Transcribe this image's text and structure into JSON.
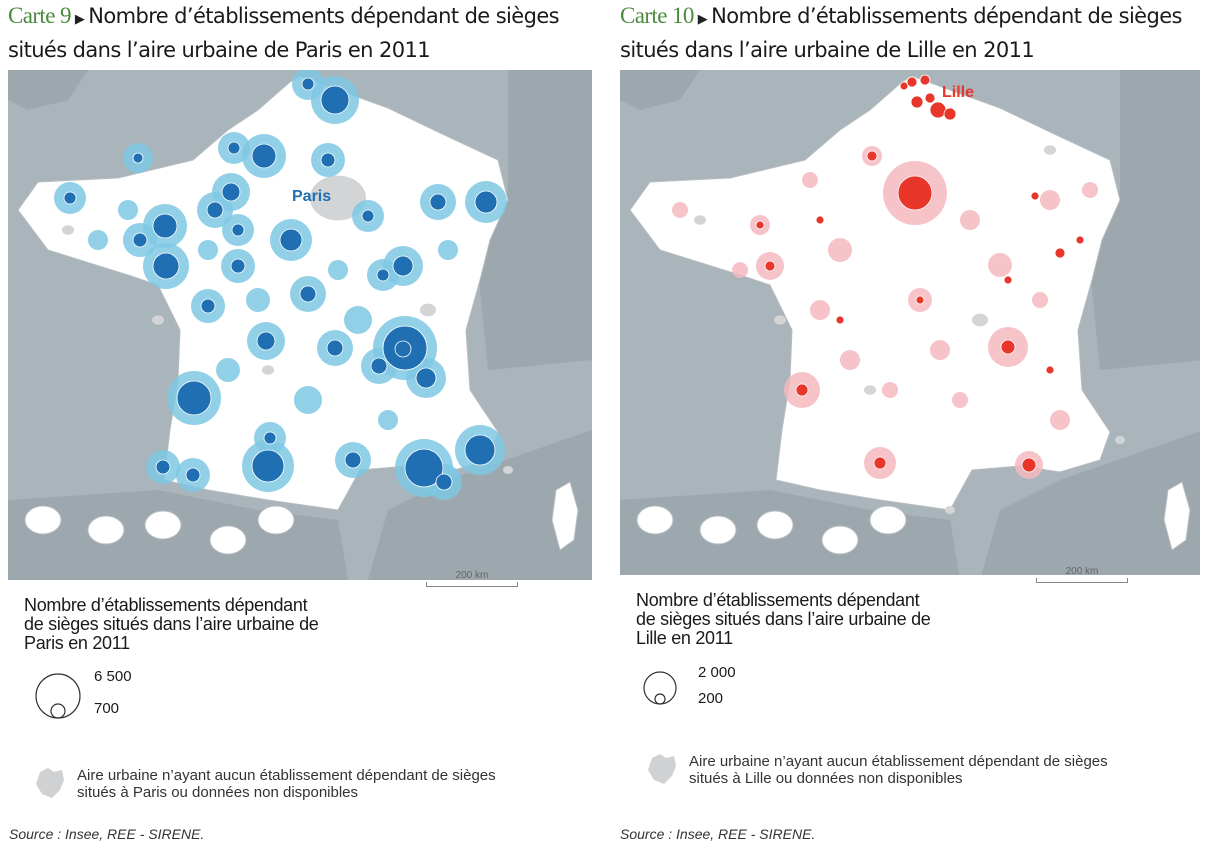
{
  "maps": [
    {
      "carte": "Carte 9",
      "title_line1": "Nombre d’établissements dépendant de sièges",
      "title_line2": "situés dans l’aire urbaine de Paris en 2011",
      "city_label": "Paris",
      "scale_label": "200 km",
      "legend_title": [
        "Nombre d’établissements dépendant",
        "de sièges situés dans l’aire urbaine de",
        "Paris en 2011"
      ],
      "legend_large": "6 500",
      "legend_small": "700",
      "legend_note": [
        "Aire urbaine n’ayant aucun établissement dépendant de sièges",
        "situés à Paris ou données non disponibles"
      ],
      "source": "Source : Insee, REE - SIRENE.",
      "bubble_color": "#1f6fb2",
      "halo_color": "#7ec8e3"
    },
    {
      "carte": "Carte 10",
      "title_line1": "Nombre d’établissements dépendant de sièges",
      "title_line2": "situés dans l’aire urbaine de Lille en 2011",
      "city_label": "Lille",
      "scale_label": "200 km",
      "legend_title": [
        "Nombre d’établissements dépendant",
        "de sièges situés dans l’aire urbaine de",
        "Lille en 2011"
      ],
      "legend_large": "2 000",
      "legend_small": "200",
      "legend_note": [
        "Aire urbaine n’ayant aucun établissement dépendant de sièges",
        "situés à Lille ou données non disponibles"
      ],
      "source": "Source : Insee, REE - SIRENE.",
      "bubble_color": "#e8362b",
      "halo_color": "#f5b8c0"
    }
  ]
}
